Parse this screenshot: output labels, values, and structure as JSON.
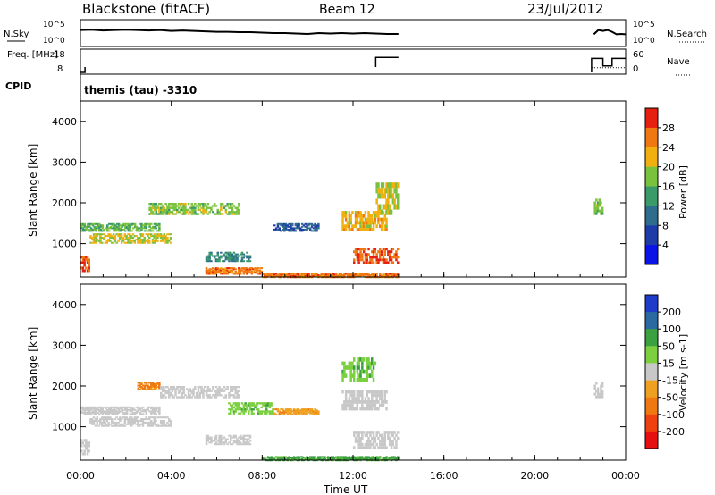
{
  "header": {
    "title": "Blackstone (fitACF)",
    "beam": "Beam 12",
    "date": "23/Jul/2012"
  },
  "cpid": {
    "label": "CPID",
    "text": "themis (tau) -3310"
  },
  "time_axis": {
    "label": "Time UT",
    "ticks": [
      "00:00",
      "04:00",
      "08:00",
      "12:00",
      "16:00",
      "20:00",
      "00:00"
    ],
    "range_hours": [
      0,
      24
    ]
  },
  "colors": {
    "data_gap": "#ffffff",
    "axis": "#000000"
  },
  "chart_data": [
    {
      "type": "line",
      "panel": "noise",
      "left_label": "N.Sky",
      "right_label": "N.Search",
      "left_ticks": [
        "10^5",
        "10^0"
      ],
      "right_ticks": [
        "10^5",
        "10^0"
      ],
      "scale": "log",
      "series": [
        {
          "name": "N.Sky",
          "style": "solid",
          "x": [
            0.0,
            0.5,
            1.0,
            1.5,
            2.0,
            2.5,
            3.0,
            3.5,
            4.0,
            4.5,
            5.0,
            5.5,
            6.0,
            6.5,
            7.0,
            7.5,
            8.0,
            8.5,
            9.0,
            9.5,
            10.0,
            10.5,
            11.0,
            11.5,
            12.0,
            12.5,
            13.0,
            13.5,
            14.0,
            22.6,
            22.8,
            23.0,
            23.2,
            23.4,
            23.6,
            23.8,
            24.0
          ],
          "y": [
            3.2,
            3.3,
            3.1,
            3.2,
            3.3,
            3.2,
            3.1,
            3.2,
            3.0,
            3.1,
            3.0,
            2.9,
            2.8,
            2.8,
            2.7,
            2.7,
            2.6,
            2.5,
            2.5,
            2.4,
            2.3,
            2.5,
            2.4,
            2.5,
            2.4,
            2.5,
            2.4,
            2.3,
            2.3,
            2.2,
            3.2,
            3.0,
            3.2,
            2.8,
            2.2,
            2.3,
            2.2
          ]
        },
        {
          "name": "N.Search",
          "style": "dotted",
          "x": [
            0,
            14
          ],
          "y": [
            0.5,
            0.5
          ]
        }
      ]
    },
    {
      "type": "line",
      "panel": "frequency",
      "left_label": "Freq. [MHz]",
      "right_label": "Nave",
      "left_ticks": [
        "18",
        "8"
      ],
      "right_ticks": [
        "60",
        "0"
      ],
      "series": [
        {
          "name": "Freq.",
          "style": "solid",
          "x": [
            0,
            0.2,
            0.2,
            13.0,
            13.0,
            14.0,
            22.5,
            22.5,
            23.0,
            23.0,
            23.4,
            23.4,
            24.0
          ],
          "y": [
            8,
            8,
            10.5,
            10.5,
            15.0,
            15.0,
            8,
            14.5,
            14.5,
            11,
            11,
            14.5,
            14.5
          ]
        },
        {
          "name": "Nave",
          "style": "dotted",
          "x": [
            0.2,
            14.0,
            22.5,
            24.0
          ],
          "y": [
            10.2,
            10.2,
            10.2,
            10.2
          ]
        }
      ]
    },
    {
      "type": "heatmap",
      "panel": "power",
      "ylabel": "Slant Range [km]",
      "yticks": [
        1000,
        2000,
        3000,
        4000
      ],
      "ylim": [
        180,
        4500
      ],
      "xlim": [
        0,
        24
      ],
      "colorbar": {
        "label": "Power [dB]",
        "ticks": [
          4,
          8,
          12,
          16,
          20,
          24,
          28
        ],
        "range": [
          0,
          32
        ],
        "colors": [
          "#0a14e6",
          "#1e3ca8",
          "#2e6e8c",
          "#3a9a6a",
          "#7ac13c",
          "#f0b010",
          "#f07810",
          "#e62010"
        ]
      },
      "patches": [
        {
          "t": [
            0.0,
            0.4
          ],
          "r": [
            300,
            700
          ],
          "v": 28
        },
        {
          "t": [
            0.0,
            3.5
          ],
          "r": [
            1300,
            1500
          ],
          "v": 16
        },
        {
          "t": [
            0.4,
            4.0
          ],
          "r": [
            1000,
            1250
          ],
          "v": 20
        },
        {
          "t": [
            3.0,
            7.0
          ],
          "r": [
            1700,
            2000
          ],
          "v": 18
        },
        {
          "t": [
            5.5,
            8.0
          ],
          "r": [
            250,
            420
          ],
          "v": 26
        },
        {
          "t": [
            5.5,
            7.5
          ],
          "r": [
            550,
            800
          ],
          "v": 12
        },
        {
          "t": [
            8.0,
            14.0
          ],
          "r": [
            180,
            280
          ],
          "v": 26
        },
        {
          "t": [
            8.5,
            10.5
          ],
          "r": [
            1300,
            1500
          ],
          "v": 8
        },
        {
          "t": [
            11.5,
            13.5
          ],
          "r": [
            1300,
            1800
          ],
          "v": 22
        },
        {
          "t": [
            12.0,
            14.0
          ],
          "r": [
            500,
            900
          ],
          "v": 28
        },
        {
          "t": [
            13.0,
            14.0
          ],
          "r": [
            1700,
            2500
          ],
          "v": 20
        },
        {
          "t": [
            22.6,
            23.0
          ],
          "r": [
            1700,
            2100
          ],
          "v": 18
        }
      ]
    },
    {
      "type": "heatmap",
      "panel": "velocity",
      "ylabel": "Slant Range [km]",
      "yticks": [
        1000,
        2000,
        3000,
        4000
      ],
      "ylim": [
        180,
        4500
      ],
      "xlim": [
        0,
        24
      ],
      "colorbar": {
        "label": "Velocity [m s-1]",
        "ticks": [
          "200",
          "100",
          "50",
          "15",
          "-15",
          "-50",
          "-100",
          "-200"
        ],
        "colors": [
          "#1e3cc8",
          "#2a6aa0",
          "#3aa040",
          "#7cd040",
          "#c8c8c8",
          "#f0a020",
          "#f07810",
          "#f04010",
          "#e61010"
        ]
      },
      "patches": [
        {
          "t": [
            0.0,
            0.4
          ],
          "r": [
            300,
            700
          ],
          "v": 0
        },
        {
          "t": [
            0.0,
            3.5
          ],
          "r": [
            1300,
            1500
          ],
          "v": 0
        },
        {
          "t": [
            0.4,
            4.0
          ],
          "r": [
            1000,
            1250
          ],
          "v": 0
        },
        {
          "t": [
            2.5,
            3.5
          ],
          "r": [
            1900,
            2100
          ],
          "v": -60
        },
        {
          "t": [
            3.5,
            7.0
          ],
          "r": [
            1700,
            2000
          ],
          "v": 0
        },
        {
          "t": [
            5.5,
            7.5
          ],
          "r": [
            550,
            800
          ],
          "v": 0
        },
        {
          "t": [
            6.5,
            8.5
          ],
          "r": [
            1300,
            1600
          ],
          "v": 40
        },
        {
          "t": [
            8.5,
            10.5
          ],
          "r": [
            1300,
            1450
          ],
          "v": -40
        },
        {
          "t": [
            8.0,
            14.0
          ],
          "r": [
            180,
            280
          ],
          "v": 60
        },
        {
          "t": [
            11.5,
            13.5
          ],
          "r": [
            1400,
            1900
          ],
          "v": 0
        },
        {
          "t": [
            11.5,
            13.0
          ],
          "r": [
            2100,
            2700
          ],
          "v": 40
        },
        {
          "t": [
            12.0,
            14.0
          ],
          "r": [
            450,
            900
          ],
          "v": 0
        },
        {
          "t": [
            22.6,
            23.0
          ],
          "r": [
            1700,
            2100
          ],
          "v": 0
        }
      ]
    }
  ]
}
